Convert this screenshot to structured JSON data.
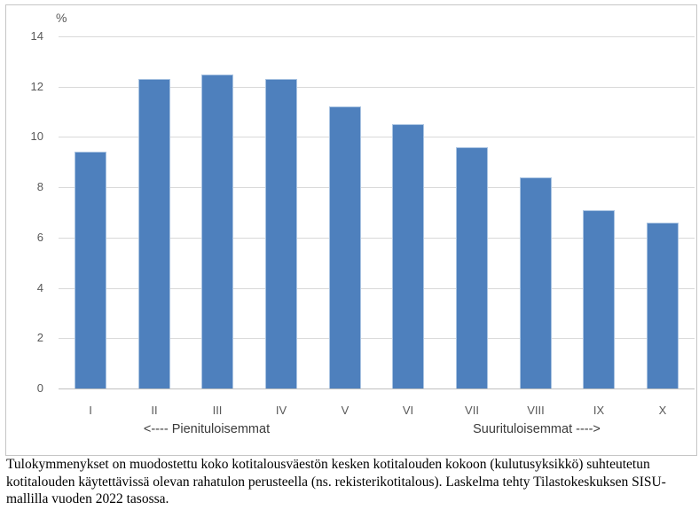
{
  "chart_data": {
    "type": "bar",
    "title": "",
    "ylabel": "%",
    "xlabel": "",
    "categories": [
      "I",
      "II",
      "III",
      "IV",
      "V",
      "VI",
      "VII",
      "VIII",
      "IX",
      "X"
    ],
    "values": [
      9.4,
      12.3,
      12.5,
      12.3,
      11.2,
      10.5,
      9.6,
      8.4,
      7.1,
      6.6
    ],
    "ylim": [
      0,
      14
    ],
    "ytick_step": 2,
    "grid": true,
    "legend": "none",
    "bar_color": "#4e80bd",
    "bar_border_color": "#aac4e2",
    "gridline_color": "#d9d9d9",
    "axis_line_color": "#bfbfbf",
    "tick_label_color": "#595959",
    "annotations": {
      "left": "<---- Pienituloisemmat",
      "right": "Suurituloisemmat ---->"
    }
  },
  "caption": {
    "lines": [
      "Tulokymmenykset on muodostettu koko kotitalousväestön kesken kotitalouden kokoon (kulutusyksikkö) suhteutetun",
      "kotitalouden käytettävissä olevan rahatulon perusteella (ns. rekisterikotitalous). Laskelma tehty Tilastokeskuksen SISU-",
      "mallilla vuoden 2022 tasossa."
    ]
  }
}
